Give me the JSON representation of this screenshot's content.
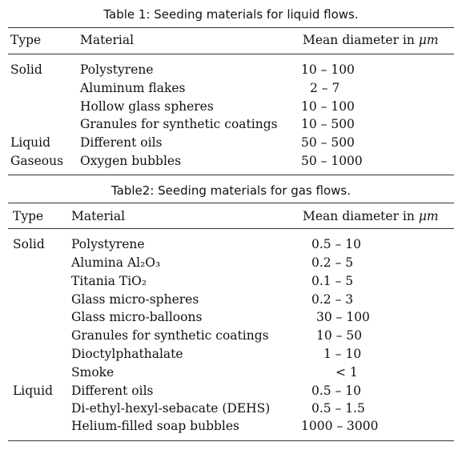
{
  "table1": {
    "caption": "Table 1: Seeding materials for liquid flows.",
    "headers": {
      "type": "Type",
      "material": "Material",
      "diameter": "Mean diameter in",
      "unit": "μm"
    },
    "rows": [
      {
        "type": "Solid",
        "material": "Polystyrene",
        "diameter": "10 – 100"
      },
      {
        "type": "",
        "material": "Aluminum flakes",
        "diameter": "2 – 7"
      },
      {
        "type": "",
        "material": "Hollow glass spheres",
        "diameter": "10 – 100"
      },
      {
        "type": "",
        "material": "Granules for synthetic coatings",
        "diameter": "10 – 500"
      },
      {
        "type": "Liquid",
        "material": "Different oils",
        "diameter": "50 – 500"
      },
      {
        "type": "Gaseous",
        "material": "Oxygen bubbles",
        "diameter": "50 – 1000"
      }
    ]
  },
  "table2": {
    "caption": "Table2: Seeding materials for gas flows.",
    "headers": {
      "type": "Type",
      "material": "Material",
      "diameter": "Mean diameter in",
      "unit": "μm"
    },
    "rows": [
      {
        "type": "Solid",
        "material": "Polystyrene",
        "diameter": "0.5 – 10"
      },
      {
        "type": "",
        "material": "Alumina Al₂O₃",
        "diameter": "0.2 – 5"
      },
      {
        "type": "",
        "material": "Titania TiO₂",
        "diameter": "0.1 – 5"
      },
      {
        "type": "",
        "material": "Glass micro-spheres",
        "diameter": "0.2 – 3"
      },
      {
        "type": "",
        "material": "Glass micro-balloons",
        "diameter": "30 – 100"
      },
      {
        "type": "",
        "material": "Granules for synthetic coatings",
        "diameter": "10 – 50"
      },
      {
        "type": "",
        "material": "Dioctylphathalate",
        "diameter": "1 – 10"
      },
      {
        "type": "",
        "material": "Smoke",
        "diameter": "< 1"
      },
      {
        "type": "Liquid",
        "material": "Different oils",
        "diameter": "0.5 – 10"
      },
      {
        "type": "",
        "material": "Di-ethyl-hexyl-sebacate (DEHS)",
        "diameter": "0.5 – 1.5"
      },
      {
        "type": "",
        "material": "Helium-filled soap bubbles",
        "diameter": "1000 – 3000"
      }
    ]
  }
}
